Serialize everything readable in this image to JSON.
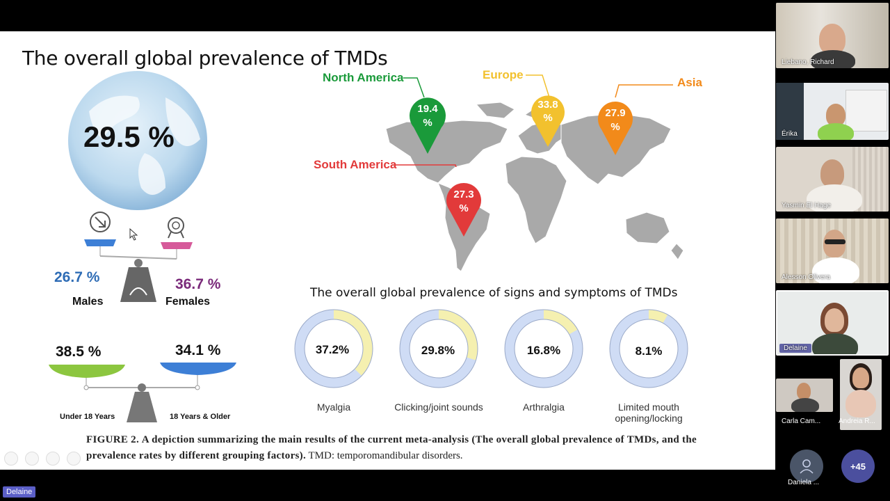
{
  "slide": {
    "title": "The overall global prevalence of TMDs",
    "global_pct": "29.5 %",
    "males_pct": "26.7 %",
    "males_label": "Males",
    "females_pct": "36.7 %",
    "females_label": "Females",
    "under18_pct": "38.5 %",
    "under18_label": "Under 18 Years",
    "over18_pct": "34.1 %",
    "over18_label": "18 Years & Older",
    "regions": [
      {
        "name": "North America",
        "value": "19.4",
        "unit": "%",
        "color": "#1a9a3a"
      },
      {
        "name": "Europe",
        "value": "33.8",
        "unit": "%",
        "color": "#f2c12e"
      },
      {
        "name": "Asia",
        "value": "27.9",
        "unit": "%",
        "color": "#f28a1a"
      },
      {
        "name": "South America",
        "value": "27.3",
        "unit": "%",
        "color": "#e23a3a"
      }
    ],
    "symptoms_title": "The overall global prevalence of signs and symptoms of TMDs",
    "symptoms": [
      {
        "label": "Myalgia",
        "value": "37.2%",
        "fraction": 0.372
      },
      {
        "label": "Clicking/joint sounds",
        "value": "29.8%",
        "fraction": 0.298
      },
      {
        "label": "Arthralgia",
        "value": "16.8%",
        "fraction": 0.168
      },
      {
        "label": "Limited mouth opening/locking",
        "value": "8.1%",
        "fraction": 0.081
      }
    ],
    "caption_label": "FIGURE 2.",
    "caption_bold": "A depiction summarizing the main results of the current meta-analysis (The overall global prevalence of TMDs, and the prevalence rates by different grouping factors).",
    "caption_rest": "TMD: temporomandibular disorders.",
    "colors": {
      "male": "#3d7fd6",
      "female": "#d65a9a",
      "donut_fill": "#f5f0b0",
      "donut_rest": "#cfdcf5",
      "green_pan": "#8cc63f",
      "blue_pan": "#3d7fd6",
      "map": "#a9a9a9"
    }
  },
  "participants": [
    {
      "name": "Liebano, Richard"
    },
    {
      "name": "Érika"
    },
    {
      "name": "Yasmin El Hage"
    },
    {
      "name": "Alesson Olivera"
    },
    {
      "name": "Delaine"
    },
    {
      "name": "Carla Cam..."
    },
    {
      "name": "Andreia R..."
    }
  ],
  "overflow": {
    "daniela_label": "Daniela ...",
    "more_count": "+45"
  },
  "presenter_tag": "Delaine"
}
